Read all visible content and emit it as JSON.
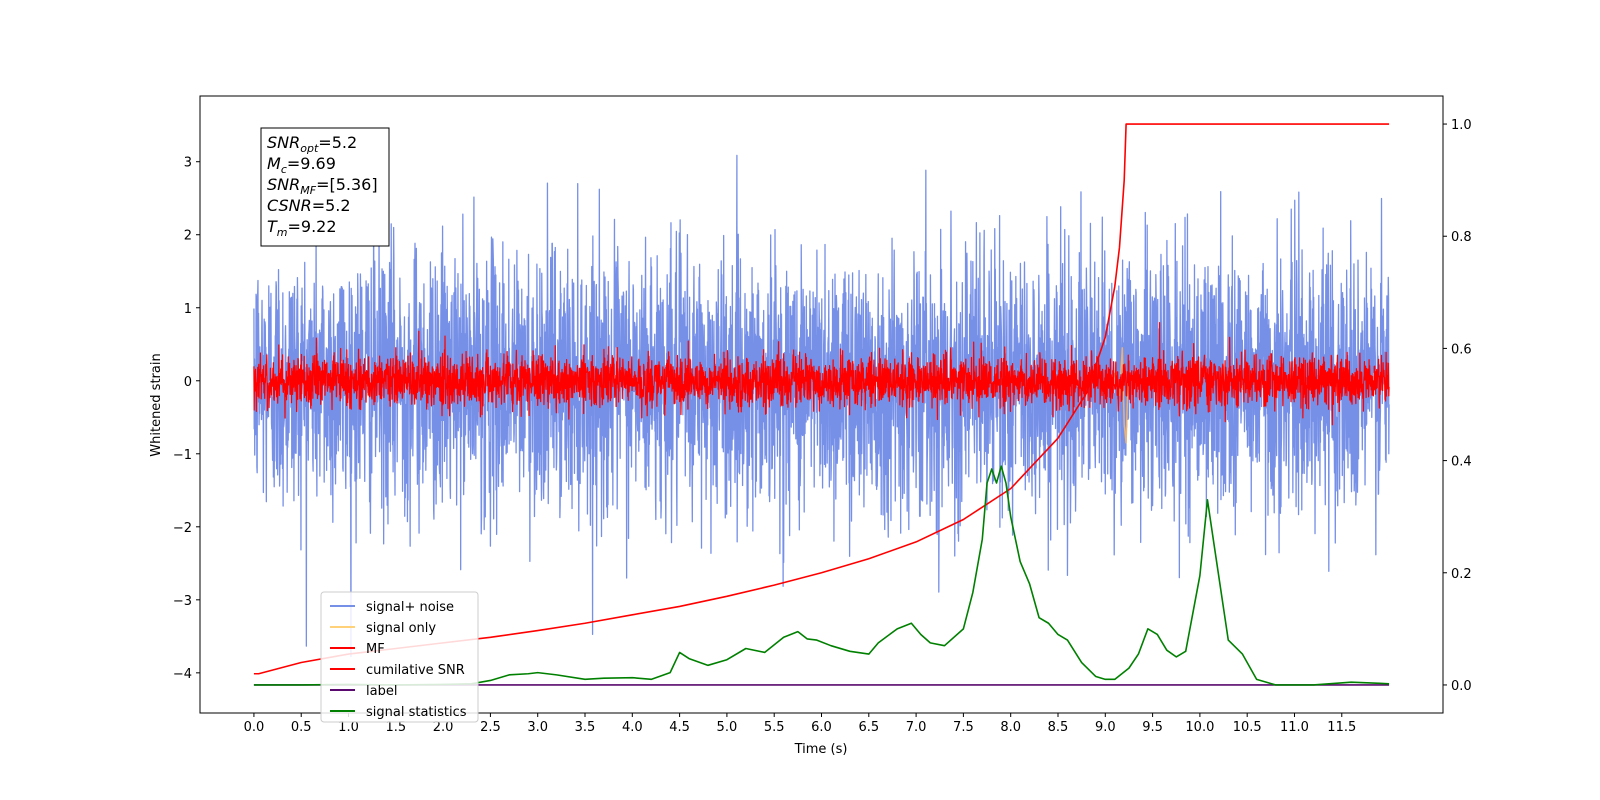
{
  "chart_data": {
    "type": "line",
    "xlabel": "Time (s)",
    "ylabel": "Whitened strain",
    "xlim": [
      -0.57,
      12.57
    ],
    "ylim": [
      -4.55,
      3.9
    ],
    "y2lim": [
      -0.05,
      1.05
    ],
    "x_ticks": [
      "0.0",
      "0.5",
      "1.0",
      "1.5",
      "2.0",
      "2.5",
      "3.0",
      "3.5",
      "4.0",
      "4.5",
      "5.0",
      "5.5",
      "6.0",
      "6.5",
      "7.0",
      "7.5",
      "8.0",
      "8.5",
      "9.0",
      "9.5",
      "10.0",
      "10.5",
      "11.0",
      "11.5"
    ],
    "y_ticks": [
      "3",
      "2",
      "1",
      "0",
      "−1",
      "−2",
      "−3",
      "−4"
    ],
    "y2_ticks": [
      "1.0",
      "0.8",
      "0.6",
      "0.4",
      "0.2",
      "0.0"
    ],
    "info_box": [
      {
        "base": "SNR",
        "sub": "opt",
        "value": "=5.2"
      },
      {
        "base": "M",
        "sub": "c",
        "value": "=9.69"
      },
      {
        "base": "SNR",
        "sub": "MF",
        "value": "=[5.36]"
      },
      {
        "base": "CSNR",
        "sub": "",
        "value": "=5.2"
      },
      {
        "base": "T",
        "sub": "m",
        "value": "=9.22"
      }
    ],
    "legend": {
      "placement": "lower-left",
      "entries": [
        {
          "label": "signal+ noise",
          "color": "#7690e8"
        },
        {
          "label": "signal only",
          "color": "#ffd27a"
        },
        {
          "label": "MF",
          "color": "#ff0000"
        },
        {
          "label": "cumilative SNR",
          "color": "#ff0000"
        },
        {
          "label": "label",
          "color": "#5a0a6e"
        },
        {
          "label": "signal statistics",
          "color": "#008000"
        }
      ]
    },
    "series": [
      {
        "name": "signal+ noise",
        "axis": "left",
        "color": "#7690e8",
        "noise_std": 0.9,
        "x_range": [
          0,
          12
        ]
      },
      {
        "name": "signal only",
        "axis": "left",
        "color": "#e8b27a",
        "x": [
          9.05,
          9.1,
          9.15,
          9.18,
          9.2,
          9.22,
          9.24
        ],
        "y": [
          0.0,
          0.1,
          -0.2,
          0.45,
          -0.6,
          -0.85,
          0.0
        ]
      },
      {
        "name": "MF",
        "axis": "left",
        "color": "#ff0000",
        "noise_std": 0.18,
        "x_range": [
          0,
          12
        ]
      },
      {
        "name": "cumilative SNR",
        "axis": "right",
        "color": "#ff0000",
        "x": [
          0.0,
          0.05,
          0.5,
          1.0,
          1.5,
          2.0,
          2.5,
          3.0,
          3.5,
          4.0,
          4.5,
          5.0,
          5.5,
          6.0,
          6.5,
          7.0,
          7.5,
          8.0,
          8.5,
          8.8,
          9.0,
          9.1,
          9.15,
          9.2,
          9.22,
          12.0
        ],
        "y": [
          0.02,
          0.02,
          0.04,
          0.055,
          0.065,
          0.075,
          0.085,
          0.097,
          0.11,
          0.125,
          0.14,
          0.158,
          0.178,
          0.2,
          0.225,
          0.255,
          0.295,
          0.35,
          0.44,
          0.52,
          0.62,
          0.71,
          0.78,
          0.9,
          1.0,
          1.0
        ]
      },
      {
        "name": "label",
        "axis": "right",
        "color": "#5a0a6e",
        "x": [
          0,
          12
        ],
        "y": [
          0.0,
          0.0
        ]
      },
      {
        "name": "signal statistics",
        "axis": "right",
        "color": "#008000",
        "x": [
          0.0,
          0.5,
          1.0,
          1.5,
          2.0,
          2.3,
          2.5,
          2.7,
          2.9,
          3.0,
          3.2,
          3.5,
          3.7,
          4.0,
          4.2,
          4.4,
          4.5,
          4.6,
          4.8,
          5.0,
          5.2,
          5.4,
          5.6,
          5.75,
          5.85,
          5.95,
          6.1,
          6.3,
          6.5,
          6.6,
          6.8,
          6.95,
          7.05,
          7.15,
          7.3,
          7.5,
          7.6,
          7.7,
          7.75,
          7.8,
          7.85,
          7.9,
          7.95,
          8.0,
          8.1,
          8.2,
          8.3,
          8.4,
          8.5,
          8.6,
          8.75,
          8.9,
          9.0,
          9.1,
          9.25,
          9.35,
          9.45,
          9.55,
          9.65,
          9.75,
          9.85,
          10.0,
          10.08,
          10.15,
          10.3,
          10.45,
          10.6,
          10.8,
          11.2,
          11.6,
          11.9,
          12.0
        ],
        "y": [
          0.0,
          0.0,
          0.001,
          0.0,
          0.001,
          0.002,
          0.008,
          0.018,
          0.02,
          0.022,
          0.018,
          0.01,
          0.012,
          0.013,
          0.01,
          0.022,
          0.058,
          0.047,
          0.035,
          0.045,
          0.065,
          0.058,
          0.085,
          0.095,
          0.082,
          0.08,
          0.07,
          0.06,
          0.055,
          0.075,
          0.1,
          0.11,
          0.09,
          0.075,
          0.07,
          0.1,
          0.165,
          0.26,
          0.36,
          0.385,
          0.36,
          0.39,
          0.36,
          0.3,
          0.22,
          0.18,
          0.12,
          0.11,
          0.09,
          0.08,
          0.04,
          0.015,
          0.01,
          0.01,
          0.03,
          0.055,
          0.1,
          0.09,
          0.062,
          0.05,
          0.06,
          0.195,
          0.33,
          0.25,
          0.08,
          0.055,
          0.01,
          0.0,
          0.0,
          0.005,
          0.003,
          0.002
        ]
      }
    ]
  }
}
